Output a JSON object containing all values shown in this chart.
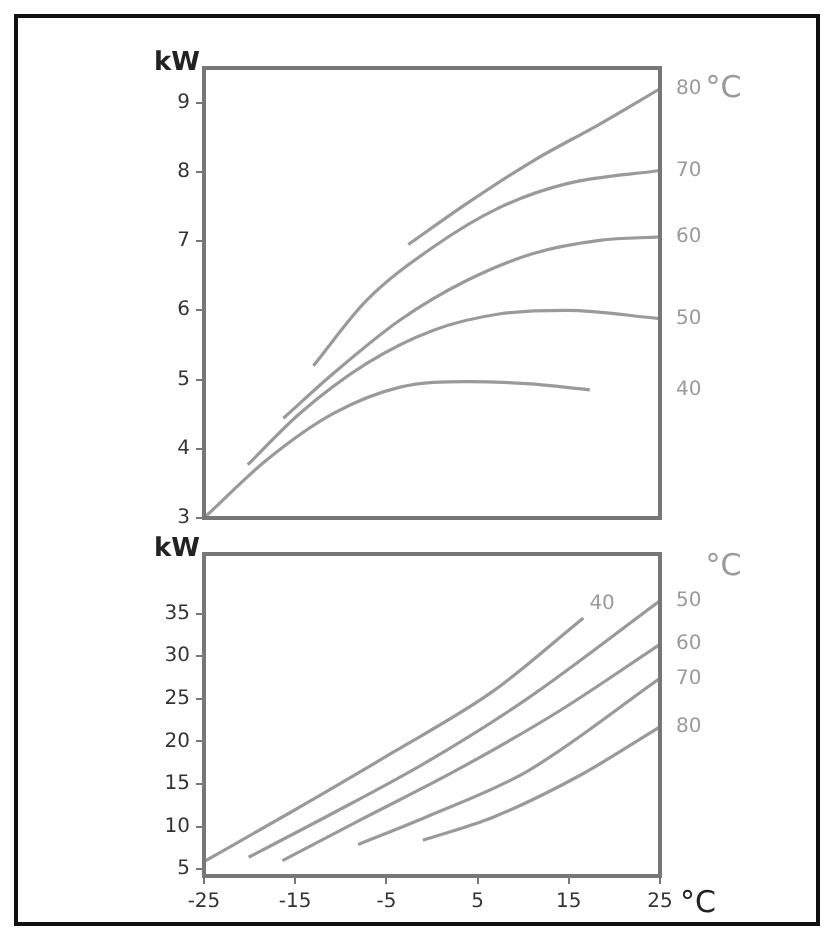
{
  "chart_data": [
    {
      "type": "line",
      "ylabel": "kW",
      "legend_title": "°C",
      "xlim": [
        -25,
        25
      ],
      "ylim": [
        3,
        9.5
      ],
      "yticks": [
        3,
        4,
        5,
        6,
        7,
        8,
        9
      ],
      "tick_labels": "y",
      "marker": "none",
      "line_style": "solid",
      "grid": false,
      "legend": false,
      "series": [
        {
          "name": "80",
          "color": "#9a9a9a",
          "x": [
            -2.6,
            3.8,
            11.1,
            18.4,
            25
          ],
          "values": [
            6.95,
            7.54,
            8.16,
            8.69,
            9.2
          ]
        },
        {
          "name": "70",
          "color": "#9a9a9a",
          "x": [
            -13,
            -7.2,
            0.1,
            7.5,
            14.8,
            25
          ],
          "values": [
            5.2,
            6.14,
            6.91,
            7.49,
            7.83,
            8.02
          ]
        },
        {
          "name": "60",
          "color": "#9a9a9a",
          "x": [
            -16.3,
            -10.8,
            -3.5,
            3.8,
            11.1,
            18.4,
            25
          ],
          "values": [
            4.44,
            5.09,
            5.86,
            6.43,
            6.82,
            7.01,
            7.06
          ]
        },
        {
          "name": "50",
          "color": "#9a9a9a",
          "x": [
            -20.2,
            -14.5,
            -7.2,
            0.1,
            7.5,
            14.8,
            25
          ],
          "values": [
            3.77,
            4.51,
            5.23,
            5.71,
            5.95,
            6.0,
            5.88
          ]
        },
        {
          "name": "40",
          "color": "#9a9a9a",
          "x": [
            -25,
            -18.1,
            -10.8,
            -3.5,
            3.8,
            10.4,
            17.3
          ],
          "values": [
            3.0,
            3.84,
            4.51,
            4.89,
            4.97,
            4.94,
            4.85
          ]
        }
      ]
    },
    {
      "type": "line",
      "ylabel": "kW",
      "xlabel": "°C",
      "legend_title": "°C",
      "xlim": [
        -25,
        25
      ],
      "xticks": [
        -25,
        -15,
        -5,
        5,
        15,
        25
      ],
      "ylim": [
        4.2,
        42
      ],
      "yticks": [
        5,
        10,
        15,
        20,
        25,
        30,
        35
      ],
      "marker": "none",
      "line_style": "solid",
      "grid": false,
      "legend": false,
      "series": [
        {
          "name": "40",
          "color": "#9a9a9a",
          "x": [
            -25,
            -15.3,
            -4.3,
            6.7,
            16.6
          ],
          "values": [
            5.9,
            11.8,
            18.7,
            25.9,
            34.5
          ]
        },
        {
          "name": "50",
          "color": "#9a9a9a",
          "x": [
            -20.1,
            -11.7,
            -0.7,
            10.3,
            25
          ],
          "values": [
            6.4,
            11.1,
            17.5,
            24.9,
            36.5
          ]
        },
        {
          "name": "60",
          "color": "#9a9a9a",
          "x": [
            -16.4,
            -8,
            3,
            14,
            25
          ],
          "values": [
            6.0,
            10.7,
            16.8,
            23.6,
            31.4
          ]
        },
        {
          "name": "70",
          "color": "#9a9a9a",
          "x": [
            -8.1,
            -0.7,
            10.3,
            25
          ],
          "values": [
            7.9,
            11.1,
            16.4,
            27.4
          ]
        },
        {
          "name": "80",
          "color": "#9a9a9a",
          "x": [
            -1,
            6.7,
            16.2,
            25
          ],
          "values": [
            8.4,
            11.1,
            16.0,
            21.7
          ]
        }
      ]
    }
  ]
}
